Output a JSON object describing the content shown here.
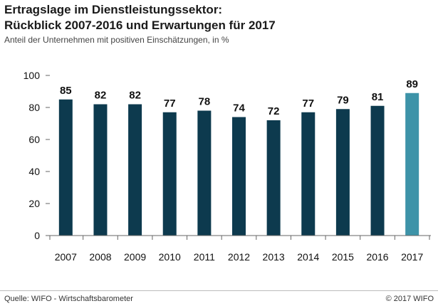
{
  "title_line1": "Ertragslage im Dienstleistungssektor:",
  "title_line2": "Rückblick 2007-2016 und Erwartungen für 2017",
  "subtitle": "Anteil der Unternehmen mit positiven Einschätzungen, in %",
  "footer_source": "Quelle: WIFO - Wirtschaftsbarometer",
  "footer_copyright": "© 2017 WIFO",
  "colors": {
    "actual": "#0d3a4e",
    "forecast": "#3d93a8",
    "axis": "#666666"
  },
  "chart_data": {
    "type": "bar",
    "categories": [
      "2007",
      "2008",
      "2009",
      "2010",
      "2011",
      "2012",
      "2013",
      "2014",
      "2015",
      "2016",
      "2017"
    ],
    "values": [
      85,
      82,
      82,
      77,
      78,
      74,
      72,
      77,
      79,
      81,
      89
    ],
    "data_labels": [
      "85",
      "82",
      "82",
      "77",
      "78",
      "74",
      "72",
      "77",
      "79",
      "81",
      "89"
    ],
    "forecast_index": 10,
    "ylim": [
      0,
      100
    ],
    "yticks": [
      0,
      20,
      40,
      60,
      80,
      100
    ],
    "grid": false,
    "legend": false
  }
}
